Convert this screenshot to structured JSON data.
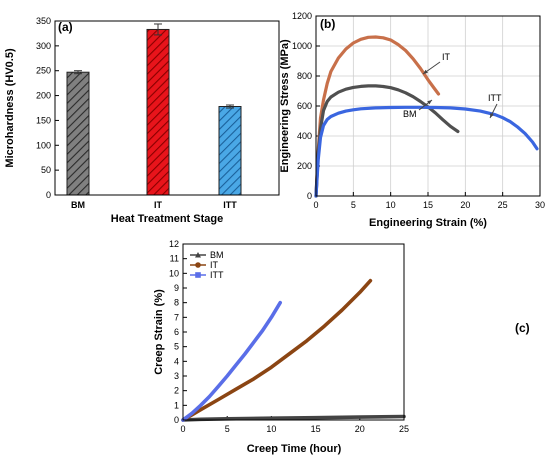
{
  "chart_data": [
    {
      "panel": "(a)",
      "type": "bar",
      "xlabel": "Heat Treatment Stage",
      "ylabel": "Microhardness (HV0.5)",
      "categories": [
        "BM",
        "IT",
        "ITT"
      ],
      "values": [
        247,
        333,
        178
      ],
      "errors": [
        3,
        11,
        3
      ],
      "colors": [
        "#808080",
        "#e8141b",
        "#4aa8e6"
      ],
      "ylim": [
        0,
        350
      ],
      "yticks": [
        0,
        50,
        100,
        150,
        200,
        250,
        300,
        350
      ],
      "hatch": "diagonal"
    },
    {
      "panel": "(b)",
      "type": "line",
      "xlabel": "Engineering Strain (%)",
      "ylabel": "Engineering Stress (MPa)",
      "xlim": [
        0,
        30
      ],
      "ylim": [
        0,
        1200
      ],
      "xticks": [
        0,
        5,
        10,
        15,
        20,
        25,
        30
      ],
      "yticks": [
        0,
        200,
        400,
        600,
        800,
        1000,
        1200
      ],
      "grid": true,
      "series": [
        {
          "name": "IT",
          "color": "#c8704a",
          "x": [
            0,
            0.3,
            0.6,
            1,
            1.5,
            2,
            3,
            4,
            5,
            6,
            7,
            8,
            9,
            10,
            11,
            12,
            13,
            14,
            15,
            15.8,
            16.4
          ],
          "y": [
            0,
            300,
            520,
            640,
            750,
            830,
            920,
            980,
            1020,
            1045,
            1058,
            1060,
            1055,
            1040,
            1010,
            970,
            915,
            850,
            775,
            720,
            680
          ]
        },
        {
          "name": "BM",
          "color": "#505050",
          "x": [
            0,
            0.3,
            0.6,
            1,
            1.5,
            2,
            3,
            4,
            5,
            6,
            7,
            8,
            9,
            10,
            11,
            12,
            13,
            14,
            15,
            16,
            17,
            18,
            19
          ],
          "y": [
            0,
            280,
            450,
            570,
            630,
            660,
            692,
            712,
            724,
            731,
            734,
            734,
            730,
            722,
            708,
            688,
            662,
            630,
            594,
            553,
            508,
            465,
            430
          ]
        },
        {
          "name": "ITT",
          "color": "#3a66e0",
          "x": [
            0,
            0.3,
            0.6,
            1,
            1.5,
            2,
            3,
            4,
            5,
            6,
            8,
            10,
            12,
            14,
            16,
            18,
            20,
            22,
            24,
            25,
            26,
            27,
            28,
            29,
            29.6
          ],
          "y": [
            0,
            240,
            390,
            470,
            510,
            530,
            552,
            566,
            575,
            581,
            587,
            590,
            591,
            591,
            590,
            587,
            580,
            566,
            542,
            522,
            496,
            460,
            416,
            360,
            315
          ]
        }
      ],
      "annotations": [
        {
          "text": "IT"
        },
        {
          "text": "ITT"
        },
        {
          "text": "BM"
        }
      ]
    },
    {
      "panel": "(c)",
      "type": "line",
      "xlabel": "Creep Time (hour)",
      "ylabel": "Creep Strain (%)",
      "xlim": [
        0,
        25
      ],
      "ylim": [
        0,
        12
      ],
      "xticks": [
        0,
        5,
        10,
        15,
        20,
        25
      ],
      "yticks": [
        0,
        1,
        2,
        3,
        4,
        5,
        6,
        7,
        8,
        9,
        10,
        11,
        12
      ],
      "legend_position": "top-left",
      "series": [
        {
          "name": "BM",
          "color": "#444444",
          "x": [
            0,
            2,
            5,
            10,
            15,
            20,
            25
          ],
          "y": [
            0,
            0.05,
            0.08,
            0.12,
            0.16,
            0.2,
            0.24
          ]
        },
        {
          "name": "IT",
          "color": "#8b4513",
          "x": [
            0,
            1,
            2,
            4,
            6,
            8,
            10,
            12,
            14,
            16,
            18,
            20,
            21.2
          ],
          "y": [
            0,
            0.35,
            0.7,
            1.4,
            2.1,
            2.8,
            3.6,
            4.5,
            5.4,
            6.4,
            7.5,
            8.7,
            9.5
          ]
        },
        {
          "name": "ITT",
          "color": "#5a6ee8",
          "x": [
            0,
            1,
            2,
            3,
            4,
            5,
            6,
            7,
            8,
            9,
            10,
            11
          ],
          "y": [
            0,
            0.45,
            1.0,
            1.6,
            2.3,
            3.0,
            3.75,
            4.5,
            5.3,
            6.1,
            7.0,
            8.0
          ]
        }
      ]
    }
  ]
}
